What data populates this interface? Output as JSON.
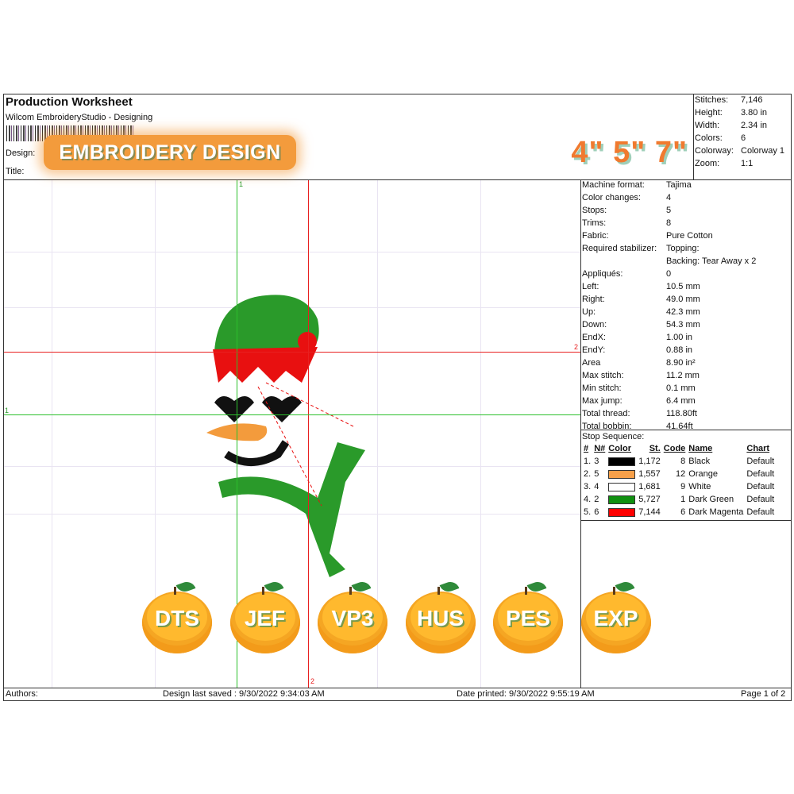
{
  "header": {
    "title": "Production Worksheet",
    "subtitle": "Wilcom EmbroideryStudio - Designing",
    "design_label": "Design:",
    "title_label": "Title:"
  },
  "overlay": {
    "badge": "EMBROIDERY DESIGN",
    "sizes": "4\" 5\" 7\""
  },
  "stats": [
    {
      "k": "Stitches:",
      "v": "7,146"
    },
    {
      "k": "Height:",
      "v": "3.80 in"
    },
    {
      "k": "Width:",
      "v": "2.34 in"
    },
    {
      "k": "Colors:",
      "v": "6"
    },
    {
      "k": "Colorway:",
      "v": "Colorway 1"
    },
    {
      "k": "Zoom:",
      "v": "1:1"
    }
  ],
  "properties": [
    {
      "k": "Machine format:",
      "v": "Tajima"
    },
    {
      "k": "Color changes:",
      "v": "4"
    },
    {
      "k": "Stops:",
      "v": "5"
    },
    {
      "k": "Trims:",
      "v": "8"
    },
    {
      "k": "Fabric:",
      "v": "Pure Cotton"
    },
    {
      "k": "Required stabilizer:",
      "v": "Topping:",
      "v2": "Backing: Tear Away x 2"
    },
    {
      "k": "Appliqués:",
      "v": "0"
    },
    {
      "k": "Left:",
      "v": "10.5 mm"
    },
    {
      "k": "Right:",
      "v": "49.0 mm"
    },
    {
      "k": "Up:",
      "v": "42.3 mm"
    },
    {
      "k": "Down:",
      "v": "54.3 mm"
    },
    {
      "k": "EndX:",
      "v": "1.00 in"
    },
    {
      "k": "EndY:",
      "v": "0.88 in"
    },
    {
      "k": "Area",
      "v": "  8.90 in²"
    },
    {
      "k": "Max stitch:",
      "v": "11.2 mm"
    },
    {
      "k": "Min stitch:",
      "v": "0.1 mm"
    },
    {
      "k": "Max jump:",
      "v": "6.4 mm"
    },
    {
      "k": "Total thread:",
      "v": "118.80ft"
    },
    {
      "k": "Total bobbin:",
      "v": "41.64ft"
    }
  ],
  "stop_sequence": {
    "title": "Stop Sequence:",
    "headers": [
      "#",
      "N#",
      "Color",
      "St.",
      "Code",
      "Name",
      "Chart"
    ],
    "rows": [
      {
        "n": "1.",
        "nn": "3",
        "color": "#000000",
        "st": "1,172",
        "code": "8",
        "name": "Black",
        "chart": "Default"
      },
      {
        "n": "2.",
        "nn": "5",
        "color": "#f7a04a",
        "st": "1,557",
        "code": "12",
        "name": "Orange",
        "chart": "Default"
      },
      {
        "n": "3.",
        "nn": "4",
        "color": "#ffffff",
        "st": "1,681",
        "code": "9",
        "name": "White",
        "chart": "Default"
      },
      {
        "n": "4.",
        "nn": "2",
        "color": "#109010",
        "st": "5,727",
        "code": "1",
        "name": "Dark Green",
        "chart": "Default"
      },
      {
        "n": "5.",
        "nn": "6",
        "color": "#ff0000",
        "st": "7,144",
        "code": "6",
        "name": "Dark Magenta",
        "chart": "Default"
      }
    ]
  },
  "guides": {
    "v1": "1",
    "v2": "2",
    "h1": "1",
    "h2": "2"
  },
  "formats": [
    "DTS",
    "JEF",
    "VP3",
    "HUS",
    "PES",
    "EXP"
  ],
  "footer": {
    "authors": "Authors:",
    "saved": "Design last saved : 9/30/2022 9:34:03 AM",
    "printed": "Date printed: 9/30/2022 9:55:19 AM",
    "page": "Page 1 of 2"
  }
}
